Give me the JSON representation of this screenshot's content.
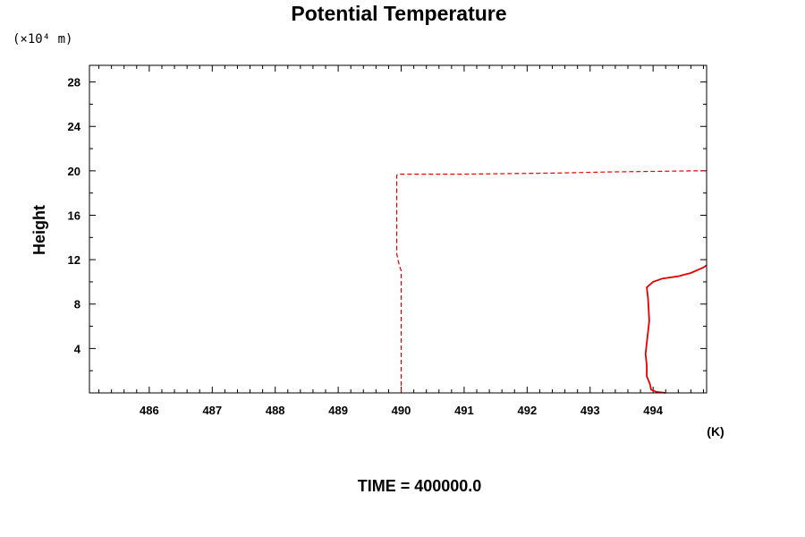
{
  "chart_data": {
    "type": "line",
    "title": "Potential Temperature",
    "ylabel": "Height",
    "y_unit_label": "(×10⁴ m)",
    "x_unit_label": "(K)",
    "footer": "TIME = 400000.0",
    "xlim": [
      485.05,
      494.85
    ],
    "ylim": [
      0,
      29.5
    ],
    "xticks": [
      486,
      487,
      488,
      489,
      490,
      491,
      492,
      493,
      494
    ],
    "xtick_labels": [
      "486",
      "487",
      "488",
      "489",
      "490",
      "491",
      "492",
      "493",
      "494"
    ],
    "yticks": [
      4,
      8,
      12,
      16,
      20,
      24,
      28
    ],
    "ytick_labels": [
      "4",
      "8",
      "12",
      "16",
      "20",
      "24",
      "28"
    ],
    "grid": false,
    "series": [
      {
        "style": "dashed",
        "color": "#e00000",
        "points": [
          [
            490.0,
            0.0
          ],
          [
            490.0,
            6.0
          ],
          [
            490.0,
            11.0
          ],
          [
            489.97,
            11.5
          ],
          [
            489.93,
            12.5
          ],
          [
            489.93,
            16.0
          ],
          [
            489.93,
            19.6
          ],
          [
            489.95,
            19.7
          ],
          [
            491.0,
            19.7
          ],
          [
            491.7,
            19.75
          ],
          [
            492.5,
            19.8
          ],
          [
            493.3,
            19.9
          ],
          [
            494.0,
            19.95
          ],
          [
            494.6,
            20.0
          ],
          [
            494.85,
            20.0
          ]
        ]
      },
      {
        "style": "solid",
        "color": "#e00000",
        "points": [
          [
            494.2,
            0.0
          ],
          [
            494.05,
            0.1
          ],
          [
            493.97,
            0.3
          ],
          [
            493.95,
            0.8
          ],
          [
            493.9,
            1.5
          ],
          [
            493.9,
            2.5
          ],
          [
            493.88,
            3.5
          ],
          [
            493.9,
            4.5
          ],
          [
            493.92,
            5.5
          ],
          [
            493.94,
            6.5
          ],
          [
            493.93,
            7.5
          ],
          [
            493.92,
            8.5
          ],
          [
            493.9,
            9.5
          ],
          [
            494.0,
            10.0
          ],
          [
            494.15,
            10.3
          ],
          [
            494.4,
            10.5
          ],
          [
            494.6,
            10.8
          ],
          [
            494.8,
            11.3
          ],
          [
            494.85,
            11.5
          ]
        ]
      }
    ]
  }
}
